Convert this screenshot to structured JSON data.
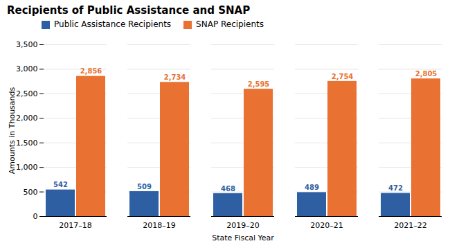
{
  "chart_data": {
    "type": "bar",
    "title": "Recipients of Public Assistance and SNAP",
    "xlabel": "State Fiscal Year",
    "ylabel": "Amounts in Thousands",
    "categories": [
      "2017–18",
      "2018–19",
      "2019–20",
      "2020–21",
      "2021–22"
    ],
    "series": [
      {
        "name": "Public Assistance Recipients",
        "color": "#2e5fa3",
        "values": [
          542,
          509,
          468,
          489,
          472
        ]
      },
      {
        "name": "SNAP Recipients",
        "color": "#e97132",
        "values": [
          2856,
          2734,
          2595,
          2754,
          2805
        ],
        "value_labels": [
          "2,856",
          "2,734",
          "2,595",
          "2,754",
          "2,805"
        ]
      }
    ],
    "ylim": [
      0,
      3500
    ],
    "yticks": [
      0,
      500,
      {
        "value": 1000,
        "label": "1,000"
      },
      {
        "value": 1500,
        "label": "1,500"
      },
      {
        "value": 2000,
        "label": "2,000"
      },
      {
        "value": 2500,
        "label": "2,500"
      },
      {
        "value": 3000,
        "label": "3,000"
      },
      {
        "value": 3500,
        "label": "3,500"
      }
    ],
    "grid": true,
    "legend": "top",
    "data_labels": true
  }
}
